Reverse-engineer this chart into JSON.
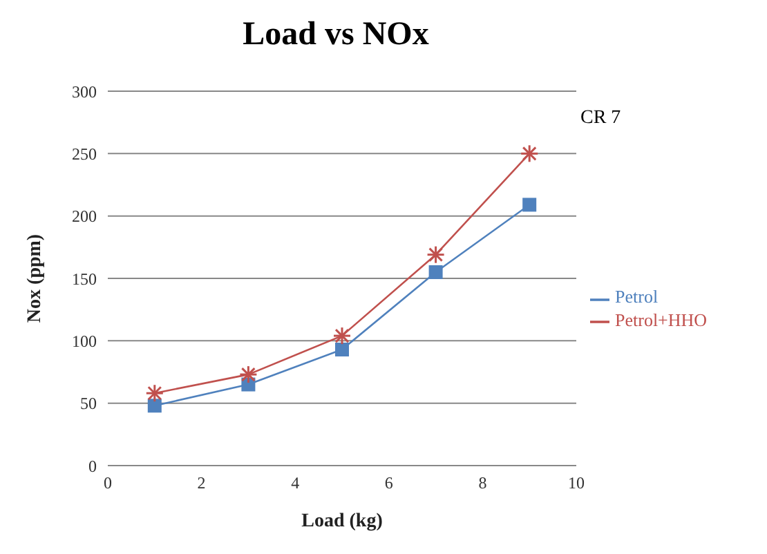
{
  "chart_data": {
    "type": "line",
    "title": "Load vs NOx",
    "xlabel": "Load (kg)",
    "ylabel": "Nox (ppm)",
    "x": [
      1,
      3,
      5,
      7,
      9
    ],
    "series": [
      {
        "name": "Petrol",
        "color": "#4f81bd",
        "values": [
          48,
          65,
          93,
          155,
          209
        ],
        "marker": "square"
      },
      {
        "name": "Petrol+HHO",
        "color": "#c0504d",
        "values": [
          58,
          73,
          104,
          169,
          250
        ],
        "marker": "cross"
      }
    ],
    "xlim": [
      0,
      10
    ],
    "xticks": [
      0,
      2,
      4,
      6,
      8,
      10
    ],
    "ylim": [
      0,
      300
    ],
    "yticks": [
      0,
      50,
      100,
      150,
      200,
      250,
      300
    ],
    "grid": "y",
    "legend": "right",
    "line_style": "solid",
    "annotations": [
      "CR 7"
    ]
  }
}
